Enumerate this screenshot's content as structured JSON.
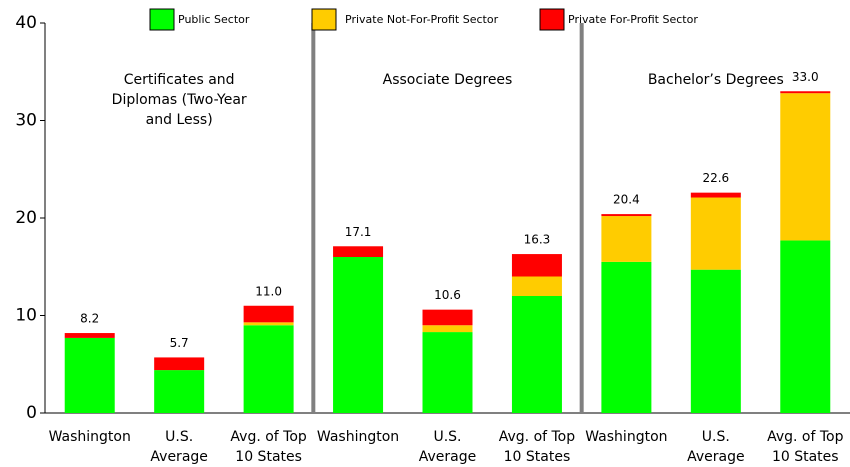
{
  "chart_data": {
    "type": "stacked-bar",
    "categories": [
      [
        "Washington"
      ],
      [
        "U.S.",
        "Average"
      ],
      [
        "Avg. of Top",
        "10 States"
      ],
      [
        "Washington"
      ],
      [
        "U.S.",
        "Average"
      ],
      [
        "Avg. of Top",
        "10 States"
      ],
      [
        "Washington"
      ],
      [
        "U.S.",
        "Average"
      ],
      [
        "Avg. of Top",
        "10 States"
      ]
    ],
    "groups": [
      [
        "Certificates and",
        "Diplomas (Two-Year",
        "and Less)"
      ],
      [
        "Associate Degrees"
      ],
      [
        "Bachelor’s Degrees"
      ]
    ],
    "series": [
      {
        "name": "Public Sector",
        "color": "#00ff00",
        "values": [
          7.7,
          4.4,
          9.0,
          16.0,
          8.3,
          12.0,
          15.5,
          14.7,
          17.7
        ]
      },
      {
        "name": "Private Not-For-Profit Sector",
        "color": "#ffcc00",
        "values": [
          0,
          0,
          0.3,
          0,
          0.7,
          2.0,
          4.7,
          7.4,
          15.1
        ]
      },
      {
        "name": "Private For-Profit Sector",
        "color": "#ff0000",
        "values": [
          0.5,
          1.3,
          1.7,
          1.1,
          1.6,
          2.3,
          0.2,
          0.5,
          0.2
        ]
      }
    ],
    "totals": [
      8.2,
      5.7,
      11.0,
      17.1,
      10.6,
      16.3,
      20.4,
      22.6,
      33.0
    ],
    "value_labels": [
      "8.2",
      "5.7",
      "11.0",
      "17.1",
      "10.6",
      "16.3",
      "20.4",
      "22.6",
      "33.0"
    ],
    "ylim": [
      0,
      40
    ],
    "yticks": [
      0,
      10,
      20,
      30,
      40
    ],
    "grid": false
  }
}
